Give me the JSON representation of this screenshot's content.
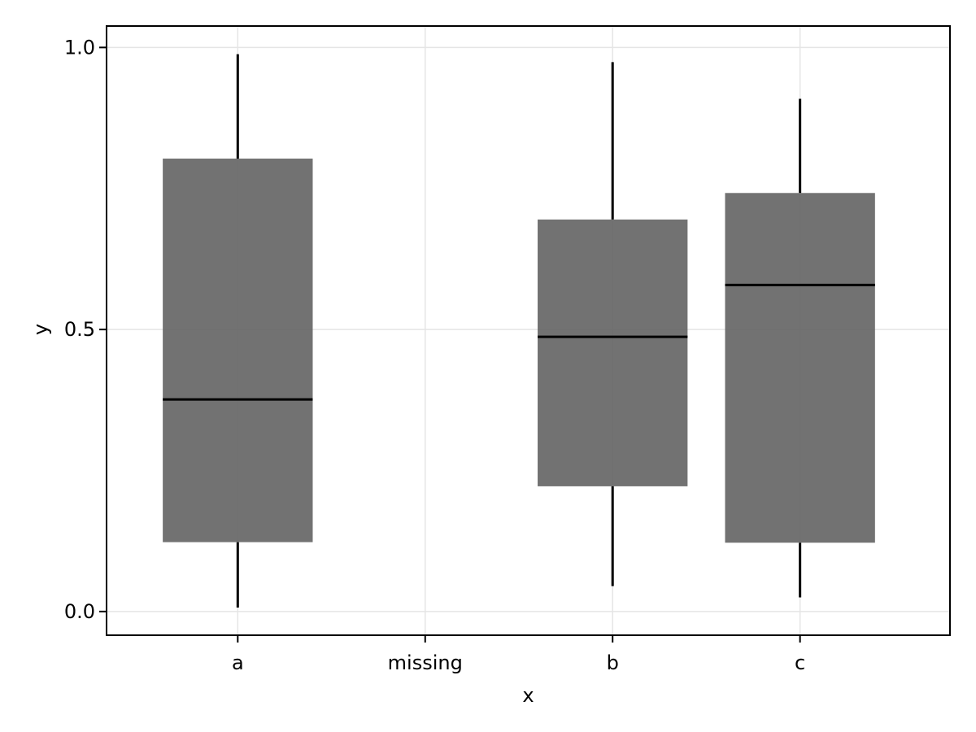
{
  "chart_data": {
    "type": "boxplot",
    "xlabel": "x",
    "ylabel": "y",
    "categories": [
      "a",
      "missing",
      "b",
      "c"
    ],
    "ylim": [
      -0.042,
      1.038
    ],
    "yticks": [
      0.0,
      0.5,
      1.0
    ],
    "ytick_labels": [
      "0.0",
      "0.5",
      "1.0"
    ],
    "grid": true,
    "boxes": [
      {
        "category": "a",
        "whisker_low": 0.007,
        "q1": 0.123,
        "median": 0.376,
        "q3": 0.803,
        "whisker_high": 0.988
      },
      {
        "category": "missing",
        "whisker_low": null,
        "q1": null,
        "median": null,
        "q3": null,
        "whisker_high": null
      },
      {
        "category": "b",
        "whisker_low": 0.045,
        "q1": 0.222,
        "median": 0.487,
        "q3": 0.695,
        "whisker_high": 0.974
      },
      {
        "category": "c",
        "whisker_low": 0.025,
        "q1": 0.122,
        "median": 0.579,
        "q3": 0.742,
        "whisker_high": 0.909
      }
    ],
    "colors": {
      "box_fill": "#666666",
      "line": "#000000",
      "grid": "#e5e5e5",
      "frame": "#000000"
    }
  }
}
